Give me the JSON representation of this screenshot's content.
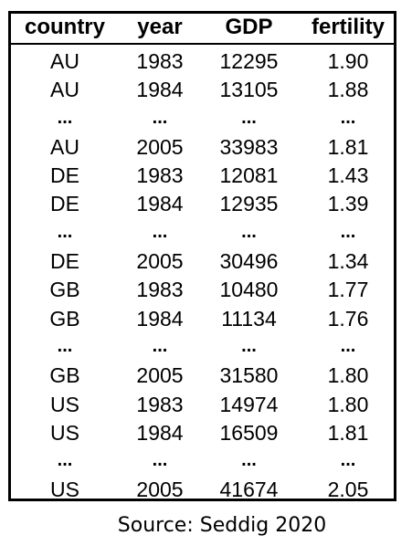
{
  "table": {
    "headers": [
      "country",
      "year",
      "GDP",
      "fertility"
    ],
    "rows": [
      [
        "AU",
        "1983",
        "12295",
        "1.90"
      ],
      [
        "AU",
        "1984",
        "13105",
        "1.88"
      ],
      [
        "...",
        "...",
        "...",
        "..."
      ],
      [
        "AU",
        "2005",
        "33983",
        "1.81"
      ],
      [
        "DE",
        "1983",
        "12081",
        "1.43"
      ],
      [
        "DE",
        "1984",
        "12935",
        "1.39"
      ],
      [
        "...",
        "...",
        "...",
        "..."
      ],
      [
        "DE",
        "2005",
        "30496",
        "1.34"
      ],
      [
        "GB",
        "1983",
        "10480",
        "1.77"
      ],
      [
        "GB",
        "1984",
        "11134",
        "1.76"
      ],
      [
        "...",
        "...",
        "...",
        "..."
      ],
      [
        "GB",
        "2005",
        "31580",
        "1.80"
      ],
      [
        "US",
        "1983",
        "14974",
        "1.80"
      ],
      [
        "US",
        "1984",
        "16509",
        "1.81"
      ],
      [
        "...",
        "...",
        "...",
        "..."
      ],
      [
        "US",
        "2005",
        "41674",
        "2.05"
      ]
    ]
  },
  "source": "Source: Seddig 2020"
}
